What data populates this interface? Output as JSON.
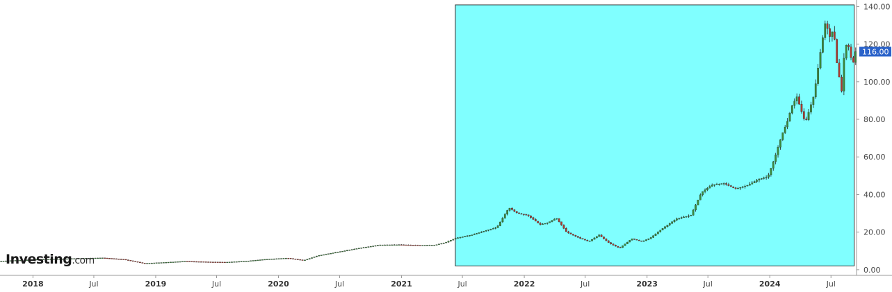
{
  "brand": {
    "name": "Investing",
    "suffix": ".com"
  },
  "colors": {
    "highlight_fill": "#80ffff",
    "up_candle": "#3a8a3a",
    "down_candle": "#b03a2e",
    "wick": "#222222",
    "axis": "#999999",
    "last_price_bg": "#2a62c9"
  },
  "chart_data": {
    "type": "candlestick",
    "title": "",
    "xlabel": "",
    "ylabel": "",
    "x_range": [
      "2017-09-25",
      "2024-09-15"
    ],
    "ylim": [
      -3,
      142
    ],
    "y_ticks": [
      "0.00",
      "20.00",
      "40.00",
      "60.00",
      "80.00",
      "100.00",
      "120.00",
      "140.00"
    ],
    "y_tick_values": [
      0,
      20,
      40,
      60,
      80,
      100,
      120,
      140
    ],
    "x_ticks": [
      {
        "label": "2018",
        "date": "2018-01-01",
        "year": true
      },
      {
        "label": "Jul",
        "date": "2018-07-01",
        "year": false
      },
      {
        "label": "2019",
        "date": "2019-01-01",
        "year": true
      },
      {
        "label": "Jul",
        "date": "2019-07-01",
        "year": false
      },
      {
        "label": "2020",
        "date": "2020-01-01",
        "year": true
      },
      {
        "label": "Jul",
        "date": "2020-07-01",
        "year": false
      },
      {
        "label": "2021",
        "date": "2021-01-01",
        "year": true
      },
      {
        "label": "Jul",
        "date": "2021-07-01",
        "year": false
      },
      {
        "label": "2022",
        "date": "2022-01-01",
        "year": true
      },
      {
        "label": "Jul",
        "date": "2022-07-01",
        "year": false
      },
      {
        "label": "2023",
        "date": "2023-01-01",
        "year": true
      },
      {
        "label": "Jul",
        "date": "2023-07-01",
        "year": false
      },
      {
        "label": "2024",
        "date": "2024-01-01",
        "year": true
      },
      {
        "label": "Jul",
        "date": "2024-07-01",
        "year": false
      }
    ],
    "last_price": 116.0,
    "last_price_label": "116.00",
    "highlight_box": {
      "x_start": "2021-06-10",
      "x_end": "2024-09-08",
      "y_low": 2,
      "y_high": 142
    },
    "grid": false,
    "price_path": [
      [
        "2017-10-01",
        4.6
      ],
      [
        "2017-12-01",
        5.1
      ],
      [
        "2018-02-01",
        5.6
      ],
      [
        "2018-04-01",
        5.8
      ],
      [
        "2018-06-01",
        6.1
      ],
      [
        "2018-08-01",
        6.3
      ],
      [
        "2018-10-01",
        5.5
      ],
      [
        "2018-12-01",
        3.4
      ],
      [
        "2019-02-01",
        3.9
      ],
      [
        "2019-04-01",
        4.5
      ],
      [
        "2019-06-01",
        4.2
      ],
      [
        "2019-08-01",
        4.0
      ],
      [
        "2019-10-01",
        4.6
      ],
      [
        "2019-12-01",
        5.6
      ],
      [
        "2020-02-01",
        6.2
      ],
      [
        "2020-03-20",
        5.0
      ],
      [
        "2020-05-01",
        7.5
      ],
      [
        "2020-07-01",
        9.5
      ],
      [
        "2020-09-01",
        11.5
      ],
      [
        "2020-11-01",
        13.2
      ],
      [
        "2021-01-01",
        13.3
      ],
      [
        "2021-03-01",
        13.0
      ],
      [
        "2021-04-15",
        13.2
      ],
      [
        "2021-05-15",
        14.5
      ],
      [
        "2021-06-15",
        16.8
      ],
      [
        "2021-08-01",
        18.5
      ],
      [
        "2021-09-15",
        21.0
      ],
      [
        "2021-10-15",
        22.5
      ],
      [
        "2021-11-20",
        33.0
      ],
      [
        "2021-12-15",
        30.0
      ],
      [
        "2022-01-15",
        29.0
      ],
      [
        "2022-02-20",
        24.0
      ],
      [
        "2022-03-15",
        25.0
      ],
      [
        "2022-04-10",
        27.5
      ],
      [
        "2022-05-10",
        20.0
      ],
      [
        "2022-06-15",
        17.0
      ],
      [
        "2022-07-15",
        15.0
      ],
      [
        "2022-08-15",
        18.5
      ],
      [
        "2022-09-15",
        14.0
      ],
      [
        "2022-10-15",
        11.5
      ],
      [
        "2022-11-20",
        16.5
      ],
      [
        "2022-12-20",
        15.0
      ],
      [
        "2023-01-15",
        17.0
      ],
      [
        "2023-02-20",
        22.0
      ],
      [
        "2023-04-01",
        27.0
      ],
      [
        "2023-05-15",
        29.0
      ],
      [
        "2023-06-15",
        41.0
      ],
      [
        "2023-07-15",
        45.0
      ],
      [
        "2023-08-20",
        46.0
      ],
      [
        "2023-09-25",
        43.0
      ],
      [
        "2023-11-01",
        45.0
      ],
      [
        "2023-12-01",
        48.0
      ],
      [
        "2023-12-30",
        49.5
      ],
      [
        "2024-01-20",
        60.0
      ],
      [
        "2024-02-10",
        72.0
      ],
      [
        "2024-02-26",
        79.0
      ],
      [
        "2024-03-10",
        87.0
      ],
      [
        "2024-03-25",
        92.0
      ],
      [
        "2024-04-19",
        78.0
      ],
      [
        "2024-05-15",
        93.0
      ],
      [
        "2024-06-05",
        118.0
      ],
      [
        "2024-06-18",
        132.0
      ],
      [
        "2024-07-01",
        124.0
      ],
      [
        "2024-07-12",
        128.0
      ],
      [
        "2024-07-22",
        110.0
      ],
      [
        "2024-08-05",
        95.0
      ],
      [
        "2024-08-15",
        120.0
      ],
      [
        "2024-08-30",
        118.0
      ],
      [
        "2024-09-06",
        106.0
      ],
      [
        "2024-09-13",
        116.0
      ]
    ]
  }
}
